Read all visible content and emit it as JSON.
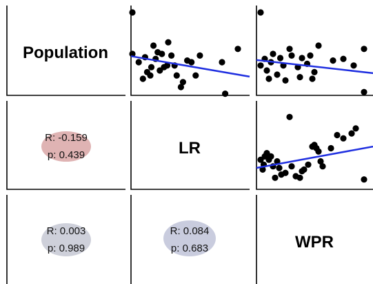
{
  "chart_data": {
    "type": "scatter",
    "variables": [
      "Population",
      "LR",
      "WPR"
    ],
    "correlations": [
      {
        "pair": [
          "Population",
          "LR"
        ],
        "r_label": "R: -0.159",
        "p_label": "p: 0.439",
        "color": "#d9a6a6"
      },
      {
        "pair": [
          "Population",
          "WPR"
        ],
        "r_label": "R: 0.003",
        "p_label": "p: 0.989",
        "color": "#c6c8d4"
      },
      {
        "pair": [
          "LR",
          "WPR"
        ],
        "r_label": "R: 0.084",
        "p_label": "p: 0.683",
        "color": "#c0c3d8"
      }
    ],
    "scatter_panels": [
      {
        "id": "lr-vs-population",
        "points": [
          [
            0.0,
            1.0
          ],
          [
            0.0,
            0.5
          ],
          [
            0.06,
            0.4
          ],
          [
            0.1,
            0.2
          ],
          [
            0.12,
            0.46
          ],
          [
            0.14,
            0.28
          ],
          [
            0.17,
            0.24
          ],
          [
            0.18,
            0.34
          ],
          [
            0.2,
            0.6
          ],
          [
            0.22,
            0.44
          ],
          [
            0.24,
            0.52
          ],
          [
            0.26,
            0.3
          ],
          [
            0.28,
            0.5
          ],
          [
            0.3,
            0.34
          ],
          [
            0.33,
            0.36
          ],
          [
            0.34,
            0.64
          ],
          [
            0.37,
            0.48
          ],
          [
            0.4,
            0.36
          ],
          [
            0.42,
            0.24
          ],
          [
            0.46,
            0.1
          ],
          [
            0.48,
            0.16
          ],
          [
            0.52,
            0.42
          ],
          [
            0.56,
            0.4
          ],
          [
            0.6,
            0.24
          ],
          [
            0.64,
            0.48
          ],
          [
            0.85,
            0.4
          ],
          [
            0.88,
            0.02
          ],
          [
            1.0,
            0.56
          ]
        ],
        "fit": [
          [
            0.0,
            0.47
          ],
          [
            1.0,
            0.25
          ]
        ]
      },
      {
        "id": "wpr-vs-population",
        "points": [
          [
            0.0,
            1.0
          ],
          [
            0.0,
            0.36
          ],
          [
            0.04,
            0.44
          ],
          [
            0.06,
            0.3
          ],
          [
            0.08,
            0.2
          ],
          [
            0.1,
            0.4
          ],
          [
            0.12,
            0.5
          ],
          [
            0.16,
            0.25
          ],
          [
            0.19,
            0.45
          ],
          [
            0.22,
            0.36
          ],
          [
            0.24,
            0.18
          ],
          [
            0.28,
            0.56
          ],
          [
            0.3,
            0.48
          ],
          [
            0.36,
            0.34
          ],
          [
            0.38,
            0.22
          ],
          [
            0.4,
            0.45
          ],
          [
            0.45,
            0.38
          ],
          [
            0.48,
            0.48
          ],
          [
            0.5,
            0.2
          ],
          [
            0.52,
            0.28
          ],
          [
            0.56,
            0.6
          ],
          [
            0.7,
            0.42
          ],
          [
            0.8,
            0.44
          ],
          [
            0.9,
            0.36
          ],
          [
            1.0,
            0.04
          ],
          [
            1.0,
            0.56
          ]
        ],
        "fit": [
          [
            0.0,
            0.42
          ],
          [
            1.0,
            0.28
          ]
        ]
      },
      {
        "id": "wpr-vs-lr",
        "points": [
          [
            0.0,
            0.36
          ],
          [
            0.02,
            0.24
          ],
          [
            0.03,
            0.3
          ],
          [
            0.04,
            0.4
          ],
          [
            0.06,
            0.44
          ],
          [
            0.08,
            0.36
          ],
          [
            0.1,
            0.4
          ],
          [
            0.12,
            0.28
          ],
          [
            0.14,
            0.14
          ],
          [
            0.16,
            0.34
          ],
          [
            0.18,
            0.26
          ],
          [
            0.2,
            0.18
          ],
          [
            0.24,
            0.2
          ],
          [
            0.28,
            0.88
          ],
          [
            0.3,
            0.28
          ],
          [
            0.34,
            0.16
          ],
          [
            0.38,
            0.14
          ],
          [
            0.4,
            0.22
          ],
          [
            0.42,
            0.24
          ],
          [
            0.46,
            0.3
          ],
          [
            0.5,
            0.52
          ],
          [
            0.52,
            0.54
          ],
          [
            0.54,
            0.5
          ],
          [
            0.56,
            0.46
          ],
          [
            0.58,
            0.34
          ],
          [
            0.6,
            0.28
          ],
          [
            0.68,
            0.5
          ],
          [
            0.74,
            0.66
          ],
          [
            0.8,
            0.62
          ],
          [
            0.88,
            0.68
          ],
          [
            0.92,
            0.74
          ],
          [
            1.0,
            0.12
          ]
        ],
        "fit": [
          [
            0.0,
            0.27
          ],
          [
            1.0,
            0.5
          ]
        ]
      }
    ],
    "grid": false,
    "legend": "none"
  },
  "colors": {
    "points": "#000000",
    "fit_line": "#1f2fe0",
    "axis": "#000000"
  }
}
